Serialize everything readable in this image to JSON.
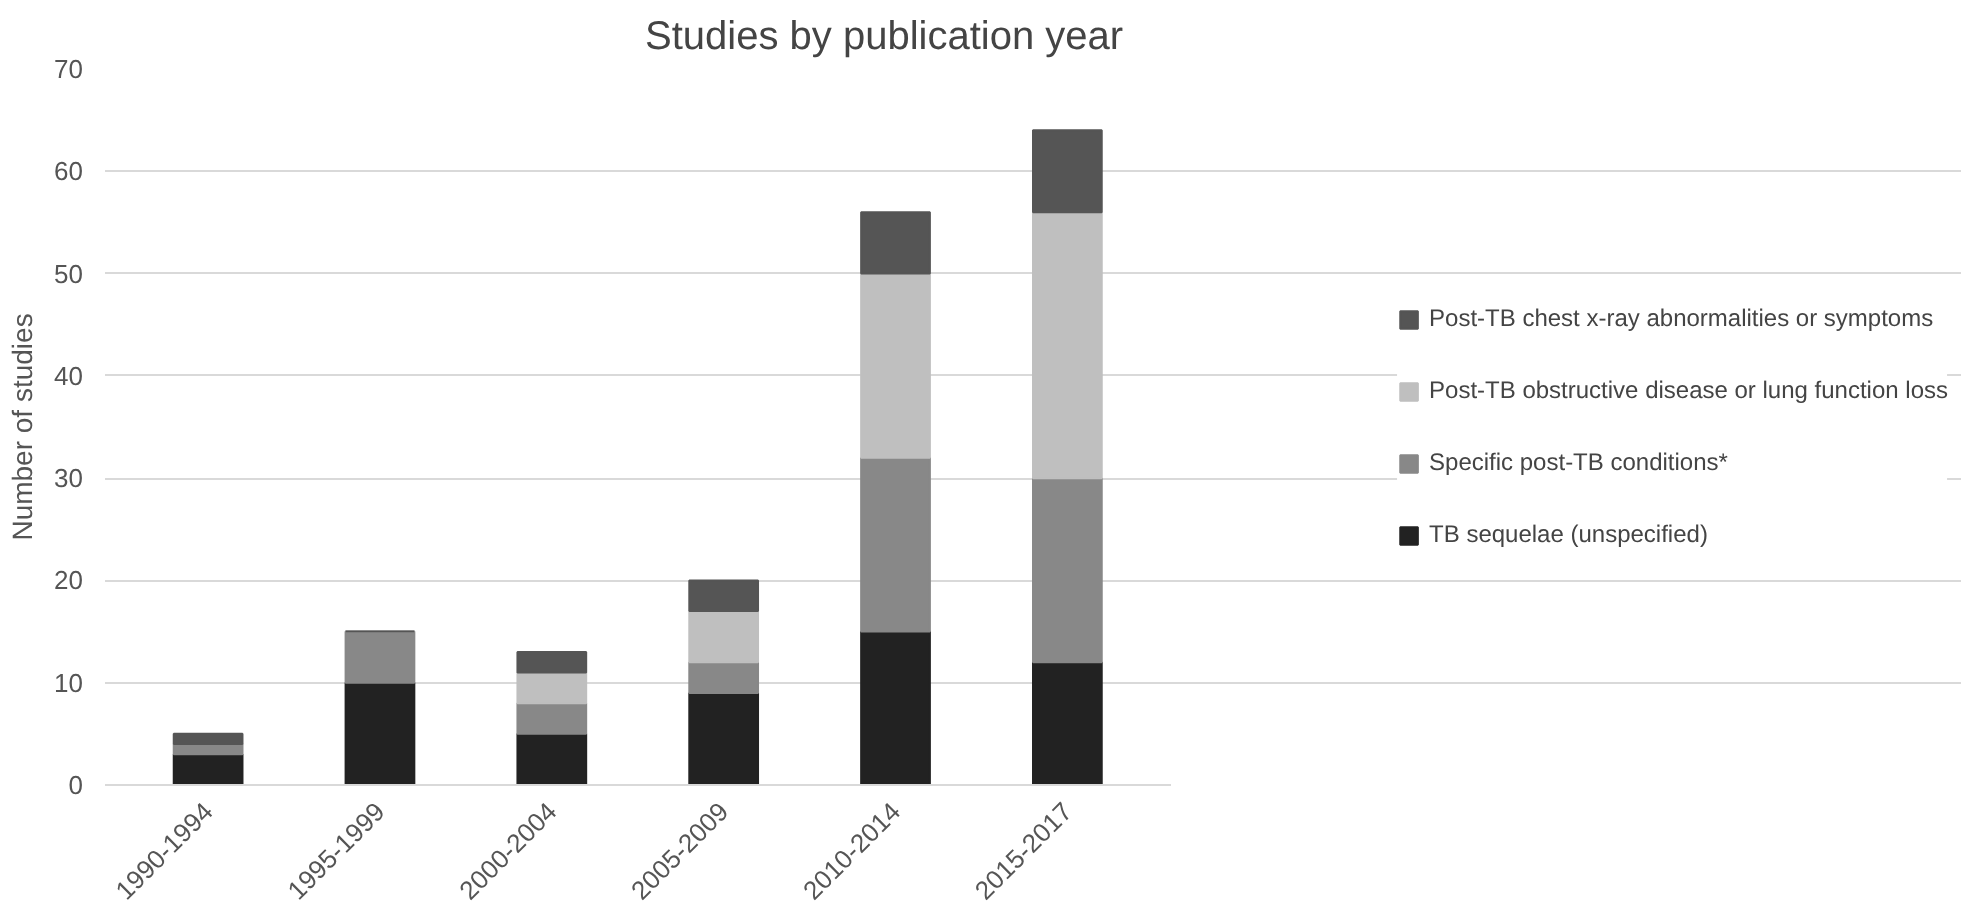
{
  "chart_data": {
    "type": "bar",
    "stacked": true,
    "title": "Studies by publication year",
    "ylabel": "Number of studies",
    "categories": [
      "1990-1994",
      "1995-1999",
      "2000-2004",
      "2005-2009",
      "2010-2014",
      "2015-2017"
    ],
    "series": [
      {
        "name": "TB sequelae (unspecified)",
        "color": "#222222",
        "values": [
          3,
          10,
          5,
          9,
          15,
          12
        ]
      },
      {
        "name": "Specific post-TB conditions*",
        "color": "#888888",
        "values": [
          1,
          5,
          3,
          3,
          17,
          18
        ]
      },
      {
        "name": "Post-TB obstructive disease or lung function loss",
        "color": "#bfbfbf",
        "values": [
          0,
          0,
          3,
          5,
          18,
          26
        ]
      },
      {
        "name": "Post-TB chest x-ray abnormalities or symptoms",
        "color": "#555555",
        "values": [
          1,
          0,
          2,
          3,
          6,
          8
        ]
      }
    ],
    "ylim": [
      0,
      70
    ],
    "yticks": [
      0,
      10,
      20,
      30,
      40,
      50,
      60,
      70
    ],
    "grid": "y",
    "legend": "right"
  }
}
